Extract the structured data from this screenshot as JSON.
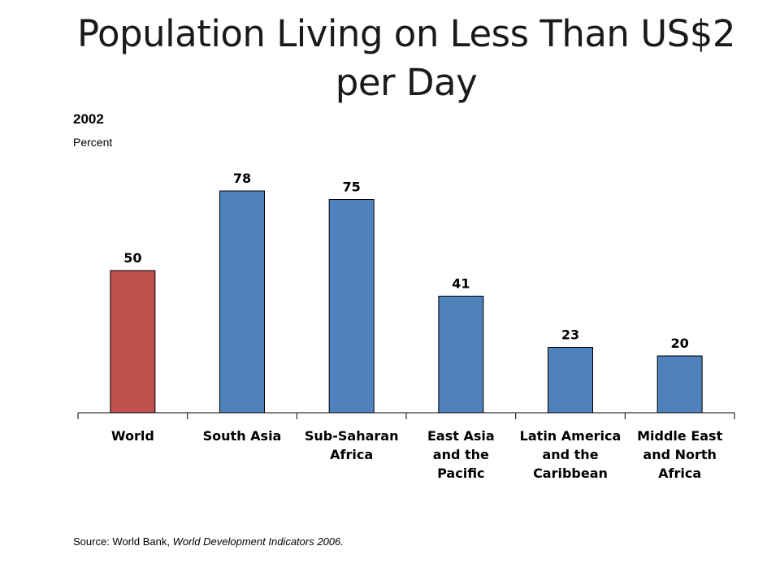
{
  "slide": {
    "title": "Population Living on Less Than US$2 per Day",
    "year": "2002",
    "unit": "Percent"
  },
  "source": {
    "prefix": "Source: World Bank, ",
    "publication": "World Development Indicators 2006."
  },
  "colors": {
    "highlight": "#c0504d",
    "bar": "#4f81bd"
  },
  "chart_data": {
    "type": "bar",
    "categories": [
      [
        "World"
      ],
      [
        "South Asia"
      ],
      [
        "Sub-Saharan",
        "Africa"
      ],
      [
        "East Asia",
        "and the",
        "Pacific"
      ],
      [
        "Latin America",
        "and the",
        "Caribbean"
      ],
      [
        "Middle East",
        "and North",
        "Africa"
      ]
    ],
    "values": [
      50,
      78,
      75,
      41,
      23,
      20
    ],
    "highlight_index": 0,
    "ylim": [
      0,
      90
    ],
    "title": "",
    "xlabel": "",
    "ylabel": "Percent",
    "grid": false,
    "legend": "none"
  }
}
